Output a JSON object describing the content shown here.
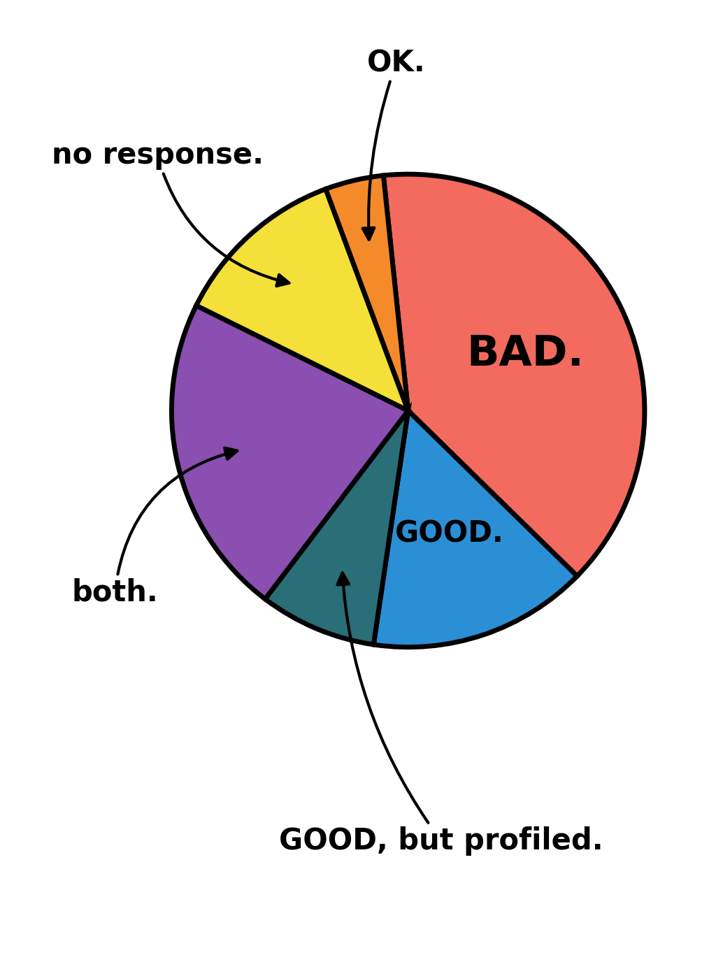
{
  "chart_data": {
    "type": "pie",
    "categories": [
      "BAD.",
      "GOOD.",
      "GOOD, but profiled.",
      "both.",
      "no response.",
      "OK."
    ],
    "values": [
      39,
      15,
      8,
      22,
      12,
      4
    ],
    "colors": [
      "#f26b5e",
      "#2b8fd6",
      "#2a6e78",
      "#8a4fb0",
      "#f5e03a",
      "#f58a2a"
    ]
  }
}
